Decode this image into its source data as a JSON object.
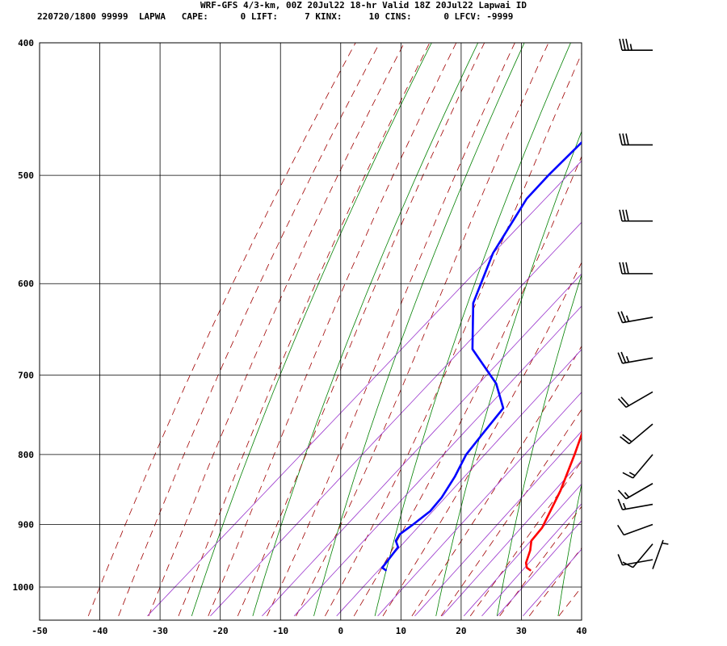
{
  "header": {
    "line1": "WRF-GFS 4/3-km, 00Z 20Jul22 18-hr Valid 18Z 20Jul22 Lapwai ID",
    "line2": "220720/1800 99999  LAPWA   CAPE:      0 LIFT:     7 KINX:     10 CINS:      0 LFCV: -9999"
  },
  "colors": {
    "frame": "#000000",
    "temperature": "#ff0000",
    "dewpoint": "#0000ff",
    "dry_adiabat": "#008000",
    "moist_adiabat": "#a00000",
    "mixing_ratio": "#9933cc",
    "wind_barb": "#000000"
  },
  "chart_data": {
    "type": "skew-t log-p sounding",
    "x_ticks": [
      -50,
      -40,
      -30,
      -20,
      -10,
      0,
      10,
      20,
      30,
      40
    ],
    "x_range": [
      -50,
      40
    ],
    "p_ticks": [
      400,
      500,
      600,
      700,
      800,
      900,
      1000
    ],
    "p_range": [
      1040,
      400
    ],
    "series": [
      {
        "key": "temperature",
        "points": [
          {
            "p": 972,
            "t": 28.5
          },
          {
            "p": 968,
            "t": 27.5
          },
          {
            "p": 960,
            "t": 26.5
          },
          {
            "p": 940,
            "t": 25.0
          },
          {
            "p": 925,
            "t": 23.5
          },
          {
            "p": 905,
            "t": 23.0
          },
          {
            "p": 850,
            "t": 19.5
          },
          {
            "p": 800,
            "t": 15.5
          },
          {
            "p": 750,
            "t": 11.0
          },
          {
            "p": 700,
            "t": 7.0
          },
          {
            "p": 650,
            "t": 3.5
          },
          {
            "p": 600,
            "t": 0.0
          },
          {
            "p": 550,
            "t": -4.5
          },
          {
            "p": 500,
            "t": -9.5
          },
          {
            "p": 450,
            "t": -15.0
          },
          {
            "p": 405,
            "t": -20.0
          }
        ]
      },
      {
        "key": "dewpoint",
        "points": [
          {
            "p": 972,
            "t": 4.5
          },
          {
            "p": 968,
            "t": 3.5
          },
          {
            "p": 935,
            "t": 2.5
          },
          {
            "p": 925,
            "t": 1.0
          },
          {
            "p": 915,
            "t": 0.5
          },
          {
            "p": 900,
            "t": 1.0
          },
          {
            "p": 880,
            "t": 1.5
          },
          {
            "p": 860,
            "t": 1.0
          },
          {
            "p": 830,
            "t": -0.5
          },
          {
            "p": 800,
            "t": -2.5
          },
          {
            "p": 770,
            "t": -3.5
          },
          {
            "p": 740,
            "t": -4.5
          },
          {
            "p": 710,
            "t": -10.0
          },
          {
            "p": 670,
            "t": -20.0
          },
          {
            "p": 620,
            "t": -28.0
          },
          {
            "p": 570,
            "t": -33.5
          },
          {
            "p": 520,
            "t": -37.5
          },
          {
            "p": 500,
            "t": -38.0
          },
          {
            "p": 450,
            "t": -38.5
          },
          {
            "p": 405,
            "t": -39.5
          }
        ]
      }
    ],
    "wind_barbs": [
      {
        "p": 405,
        "dir": 270,
        "kt": 35
      },
      {
        "p": 475,
        "dir": 270,
        "kt": 30
      },
      {
        "p": 540,
        "dir": 270,
        "kt": 30
      },
      {
        "p": 590,
        "dir": 270,
        "kt": 30
      },
      {
        "p": 635,
        "dir": 260,
        "kt": 25
      },
      {
        "p": 680,
        "dir": 260,
        "kt": 25
      },
      {
        "p": 720,
        "dir": 240,
        "kt": 20
      },
      {
        "p": 760,
        "dir": 230,
        "kt": 20
      },
      {
        "p": 800,
        "dir": 220,
        "kt": 15
      },
      {
        "p": 840,
        "dir": 240,
        "kt": 15
      },
      {
        "p": 870,
        "dir": 260,
        "kt": 15
      },
      {
        "p": 900,
        "dir": 250,
        "kt": 10
      },
      {
        "p": 930,
        "dir": 220,
        "kt": 10
      },
      {
        "p": 955,
        "dir": 260,
        "kt": 10
      },
      {
        "p": 970,
        "dir": 20,
        "kt": 5
      }
    ]
  }
}
